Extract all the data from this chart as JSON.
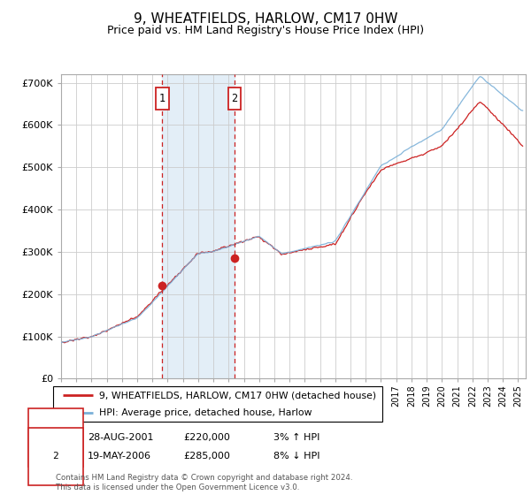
{
  "title": "9, WHEATFIELDS, HARLOW, CM17 0HW",
  "subtitle": "Price paid vs. HM Land Registry's House Price Index (HPI)",
  "ylim": [
    0,
    720000
  ],
  "yticks": [
    0,
    100000,
    200000,
    300000,
    400000,
    500000,
    600000,
    700000
  ],
  "ytick_labels": [
    "£0",
    "£100K",
    "£200K",
    "£300K",
    "£400K",
    "£500K",
    "£600K",
    "£700K"
  ],
  "hpi_color": "#7ab0d8",
  "price_color": "#cc2222",
  "marker1_date": 2001.65,
  "marker1_price": 220000,
  "marker1_label": "1",
  "marker2_date": 2006.38,
  "marker2_price": 285000,
  "marker2_label": "2",
  "legend_line1": "9, WHEATFIELDS, HARLOW, CM17 0HW (detached house)",
  "legend_line2": "HPI: Average price, detached house, Harlow",
  "footer": "Contains HM Land Registry data © Crown copyright and database right 2024.\nThis data is licensed under the Open Government Licence v3.0.",
  "bg_shade_color": "#d8e8f5",
  "grid_color": "#cccccc",
  "title_fontsize": 11,
  "subtitle_fontsize": 9,
  "tick_fontsize": 8,
  "xmin": 1995,
  "xmax": 2025.5
}
